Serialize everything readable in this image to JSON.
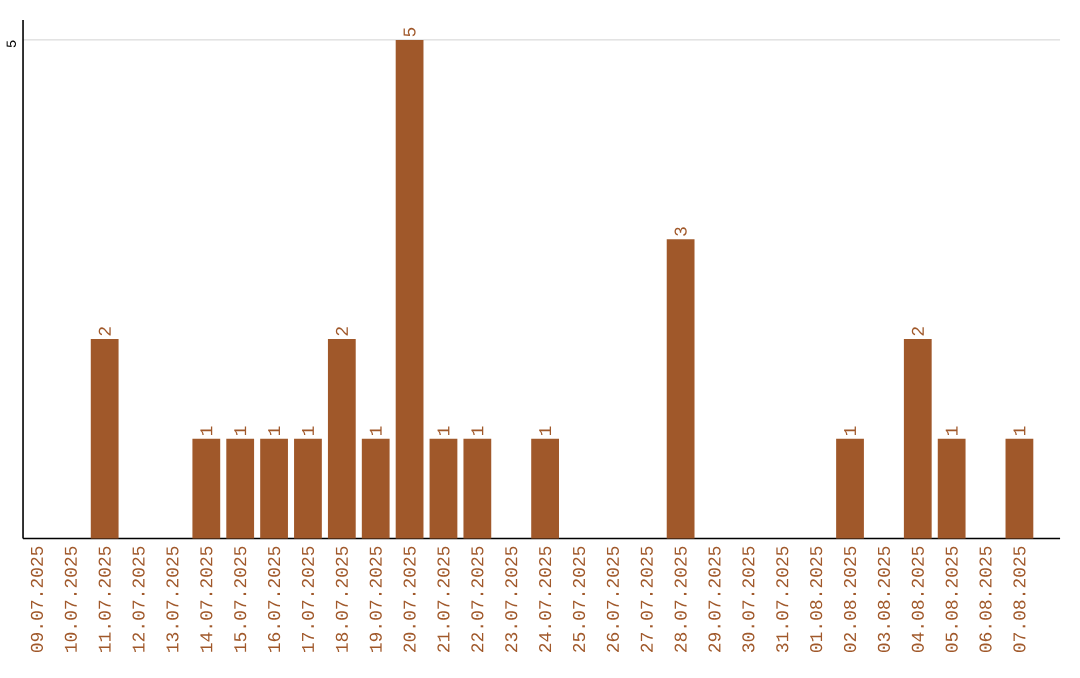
{
  "chart_data": {
    "type": "bar",
    "categories": [
      "09.07.2025",
      "10.07.2025",
      "11.07.2025",
      "12.07.2025",
      "13.07.2025",
      "14.07.2025",
      "15.07.2025",
      "16.07.2025",
      "17.07.2025",
      "18.07.2025",
      "19.07.2025",
      "20.07.2025",
      "21.07.2025",
      "22.07.2025",
      "23.07.2025",
      "24.07.2025",
      "25.07.2025",
      "26.07.2025",
      "27.07.2025",
      "28.07.2025",
      "29.07.2025",
      "30.07.2025",
      "31.07.2025",
      "01.08.2025",
      "02.08.2025",
      "03.08.2025",
      "04.08.2025",
      "05.08.2025",
      "06.08.2025",
      "07.08.2025"
    ],
    "values": [
      0,
      0,
      2,
      0,
      0,
      1,
      1,
      1,
      1,
      2,
      1,
      5,
      1,
      1,
      0,
      1,
      0,
      0,
      0,
      3,
      0,
      0,
      0,
      0,
      1,
      0,
      2,
      1,
      0,
      1
    ],
    "value_labels": [
      null,
      null,
      "2",
      null,
      null,
      "1",
      "1",
      "1",
      "1",
      "2",
      "1",
      "5",
      "1",
      "1",
      null,
      "1",
      null,
      null,
      null,
      "3",
      null,
      null,
      null,
      null,
      "1",
      null,
      "2",
      "1",
      null,
      "1"
    ],
    "color": "#a0582a",
    "ylim": [
      0,
      5.2
    ],
    "yticks": [
      5
    ],
    "grid": "y"
  }
}
